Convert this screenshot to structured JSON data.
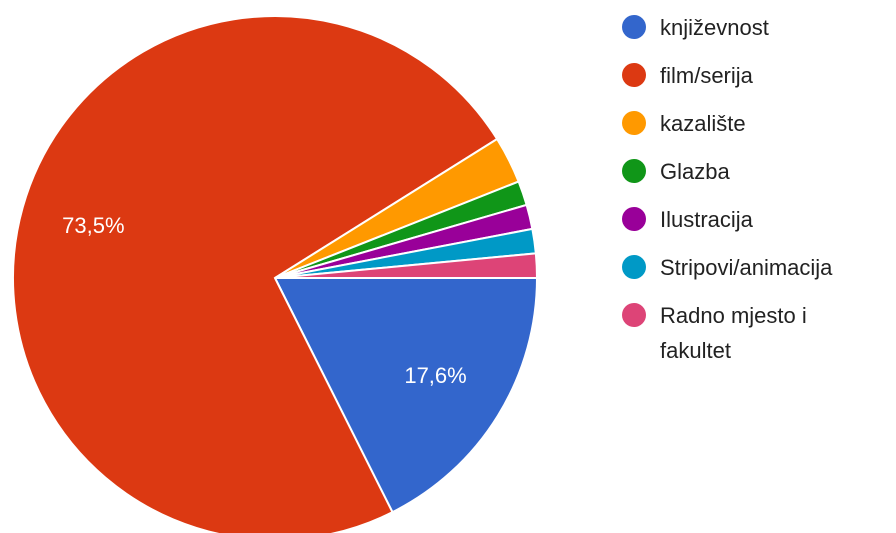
{
  "chart_data": {
    "type": "pie",
    "categories": [
      "književnost",
      "film/serija",
      "kazalište",
      "Glazba",
      "Ilustracija",
      "Stripovi/animacija",
      "Radno mjesto i fakultet"
    ],
    "values": [
      17.6,
      73.5,
      2.9,
      1.5,
      1.5,
      1.5,
      1.5
    ],
    "value_labels": [
      "17,6%",
      "73,5%",
      null,
      null,
      null,
      null,
      null
    ],
    "colors": [
      "#3366cc",
      "#dc3912",
      "#ff9900",
      "#109618",
      "#990099",
      "#0099c6",
      "#dd4477"
    ],
    "legend": "right"
  }
}
